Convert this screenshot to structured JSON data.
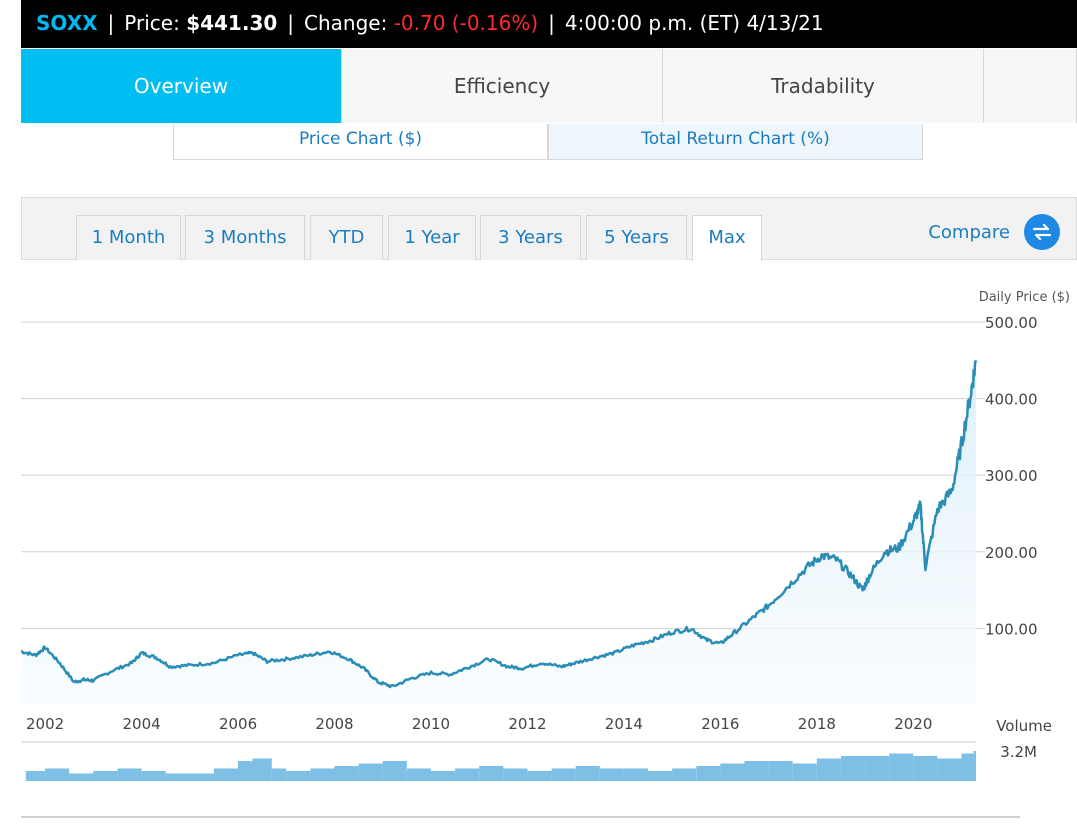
{
  "header": {
    "ticker": "SOXX",
    "price_label": "Price:",
    "price_value": "$441.30",
    "change_label": "Change:",
    "change_value": "-0.70 (-0.16%)",
    "timestamp": "4:00:00 p.m. (ET) 4/13/21"
  },
  "tabs": [
    {
      "label": "Overview",
      "active": true
    },
    {
      "label": "Efficiency",
      "active": false
    },
    {
      "label": "Tradability",
      "active": false
    }
  ],
  "subtabs": [
    {
      "label": "Price Chart ($)",
      "active": false
    },
    {
      "label": "Total Return Chart (%)",
      "active": true
    }
  ],
  "ranges": [
    {
      "label": "1 Month"
    },
    {
      "label": "3 Months"
    },
    {
      "label": "YTD"
    },
    {
      "label": "1 Year"
    },
    {
      "label": "3 Years"
    },
    {
      "label": "5 Years"
    },
    {
      "label": "Max",
      "active": true
    }
  ],
  "compare_label": "Compare",
  "colors": {
    "accent": "#00bef2",
    "line": "#2a8db5",
    "negative": "#ff2a2a",
    "volume": "#7ebfe6"
  },
  "chart_data": [
    {
      "type": "line",
      "ylabel": "Daily Price ($)",
      "ylim": [
        0,
        500
      ],
      "yticks": [
        "100.00",
        "200.00",
        "300.00",
        "400.00",
        "500.00"
      ],
      "ytick_values": [
        100,
        200,
        300,
        400,
        500
      ],
      "xticks": [
        "2002",
        "2004",
        "2006",
        "2008",
        "2010",
        "2012",
        "2014",
        "2016",
        "2018",
        "2020"
      ],
      "xtick_values": [
        2002,
        2004,
        2006,
        2008,
        2010,
        2012,
        2014,
        2016,
        2018,
        2020
      ],
      "xlim": [
        2001.5,
        2021.3
      ],
      "grid": true,
      "series": [
        {
          "x": [
            2001.5,
            2001.8,
            2002.0,
            2002.3,
            2002.6,
            2002.8,
            2003.0,
            2003.4,
            2003.8,
            2004.0,
            2004.3,
            2004.6,
            2005.0,
            2005.5,
            2006.0,
            2006.3,
            2006.6,
            2007.0,
            2007.5,
            2007.9,
            2008.3,
            2008.6,
            2008.9,
            2009.2,
            2009.6,
            2010.0,
            2010.4,
            2010.8,
            2011.2,
            2011.6,
            2011.9,
            2012.3,
            2012.7,
            2013.0,
            2013.4,
            2013.8,
            2014.2,
            2014.6,
            2015.0,
            2015.4,
            2015.7,
            2016.0,
            2016.3,
            2016.7,
            2017.0,
            2017.4,
            2017.8,
            2018.1,
            2018.4,
            2018.7,
            2018.95,
            2019.1,
            2019.4,
            2019.7,
            2020.0,
            2020.15,
            2020.25,
            2020.5,
            2020.8,
            2021.0,
            2021.2,
            2021.3
          ],
          "y": [
            70,
            65,
            75,
            55,
            30,
            33,
            32,
            45,
            55,
            68,
            62,
            50,
            52,
            55,
            65,
            68,
            57,
            60,
            65,
            70,
            60,
            48,
            30,
            24,
            35,
            42,
            40,
            50,
            60,
            50,
            48,
            55,
            50,
            55,
            62,
            68,
            78,
            85,
            95,
            100,
            85,
            80,
            95,
            115,
            130,
            155,
            180,
            195,
            190,
            170,
            150,
            170,
            200,
            205,
            240,
            260,
            180,
            255,
            280,
            340,
            410,
            450
          ]
        }
      ]
    },
    {
      "type": "bar",
      "title": "Volume",
      "ymax_label": "3.2M",
      "x": [
        2001.6,
        2002.0,
        2002.5,
        2003.0,
        2003.5,
        2004.0,
        2004.5,
        2005.0,
        2005.5,
        2006.0,
        2006.3,
        2006.7,
        2007.0,
        2007.5,
        2008.0,
        2008.5,
        2009.0,
        2009.5,
        2010.0,
        2010.5,
        2011.0,
        2011.5,
        2012.0,
        2012.5,
        2013.0,
        2013.5,
        2014.0,
        2014.5,
        2015.0,
        2015.5,
        2016.0,
        2016.5,
        2017.0,
        2017.5,
        2018.0,
        2018.5,
        2019.0,
        2019.5,
        2020.0,
        2020.5,
        2021.0,
        2021.25
      ],
      "values": [
        0.4,
        0.5,
        0.3,
        0.4,
        0.5,
        0.4,
        0.3,
        0.3,
        0.5,
        0.8,
        0.9,
        0.5,
        0.4,
        0.5,
        0.6,
        0.7,
        0.8,
        0.5,
        0.4,
        0.5,
        0.6,
        0.5,
        0.4,
        0.5,
        0.6,
        0.5,
        0.5,
        0.4,
        0.5,
        0.6,
        0.7,
        0.8,
        0.8,
        0.7,
        0.9,
        1.0,
        1.0,
        1.1,
        1.0,
        0.9,
        1.1,
        1.2
      ]
    }
  ]
}
